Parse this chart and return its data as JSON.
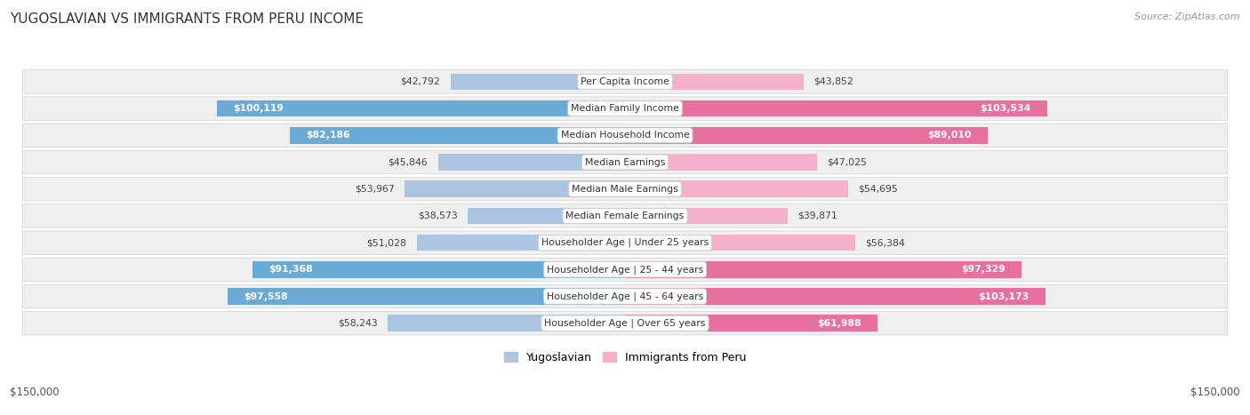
{
  "title": "YUGOSLAVIAN VS IMMIGRANTS FROM PERU INCOME",
  "source": "Source: ZipAtlas.com",
  "categories": [
    "Per Capita Income",
    "Median Family Income",
    "Median Household Income",
    "Median Earnings",
    "Median Male Earnings",
    "Median Female Earnings",
    "Householder Age | Under 25 years",
    "Householder Age | 25 - 44 years",
    "Householder Age | 45 - 64 years",
    "Householder Age | Over 65 years"
  ],
  "yugoslav_values": [
    42792,
    100119,
    82186,
    45846,
    53967,
    38573,
    51028,
    91368,
    97558,
    58243
  ],
  "peru_values": [
    43852,
    103534,
    89010,
    47025,
    54695,
    39871,
    56384,
    97329,
    103173,
    61988
  ],
  "yugoslav_labels": [
    "$42,792",
    "$100,119",
    "$82,186",
    "$45,846",
    "$53,967",
    "$38,573",
    "$51,028",
    "$91,368",
    "$97,558",
    "$58,243"
  ],
  "peru_labels": [
    "$43,852",
    "$103,534",
    "$89,010",
    "$47,025",
    "$54,695",
    "$39,871",
    "$56,384",
    "$97,329",
    "$103,173",
    "$61,988"
  ],
  "yugoslav_color_light": "#aac4e2",
  "yugoslav_color_dark": "#6aaad4",
  "peru_color_light": "#f5b0cc",
  "peru_color_dark": "#e8709e",
  "max_value": 150000,
  "x_label_left": "$150,000",
  "x_label_right": "$150,000",
  "legend_yugoslav": "Yugoslavian",
  "legend_peru": "Immigrants from Peru",
  "row_bg_color": "#efefef",
  "large_thresh": 60000
}
